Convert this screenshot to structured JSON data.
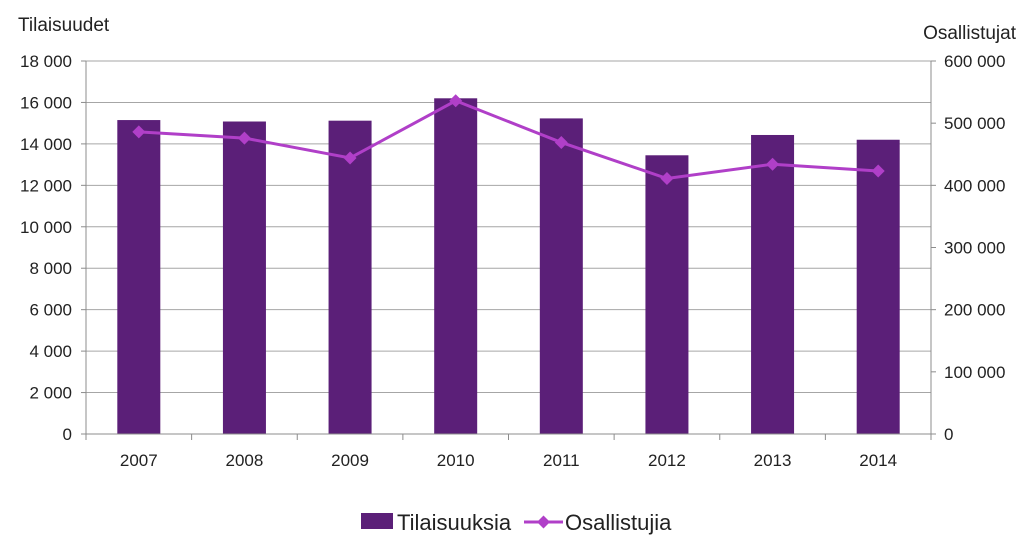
{
  "chart_data": {
    "type": "bar",
    "categories": [
      "2007",
      "2008",
      "2009",
      "2010",
      "2011",
      "2012",
      "2013",
      "2014"
    ],
    "y_title": "Tilaisuudet",
    "y2_title": "Osallistujat",
    "ylim": [
      0,
      18000
    ],
    "y2lim": [
      0,
      600000
    ],
    "y_ticks": [
      "0",
      "2 000",
      "4 000",
      "6 000",
      "8 000",
      "10 000",
      "12 000",
      "14 000",
      "16 000",
      "18 000"
    ],
    "y2_ticks": [
      "0",
      "100 000",
      "200 000",
      "300 000",
      "400 000",
      "500 000",
      "600 000"
    ],
    "grid": true,
    "legend_position": "bottom",
    "series": [
      {
        "name": "Tilaisuuksia",
        "type": "bar",
        "axis": "left",
        "color": "#5b1f78",
        "values": [
          15150,
          15080,
          15120,
          16200,
          15230,
          13450,
          14430,
          14200
        ]
      },
      {
        "name": "Osallistujia",
        "type": "line",
        "axis": "right",
        "color": "#b03fc8",
        "values": [
          486000,
          476000,
          444000,
          536000,
          469000,
          411000,
          434000,
          423000
        ]
      }
    ]
  }
}
